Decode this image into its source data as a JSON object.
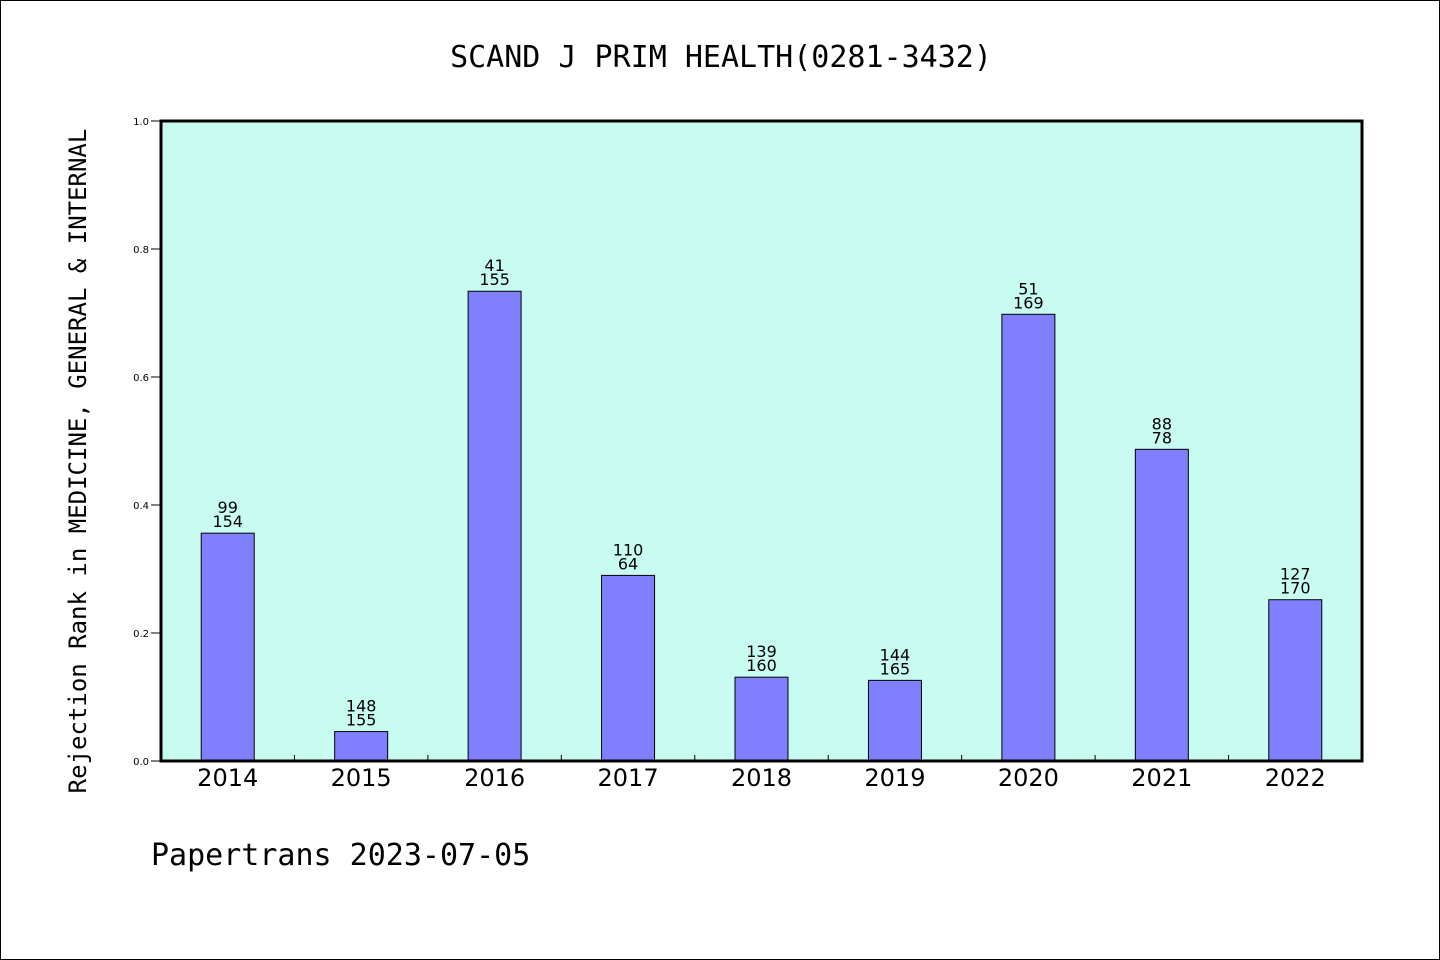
{
  "chart_data": {
    "type": "bar",
    "title": "SCAND J PRIM HEALTH(0281-3432)",
    "ylabel": "Rejection Rank in MEDICINE, GENERAL & INTERNAL",
    "xlabel": "",
    "ylim": [
      0,
      1.0
    ],
    "yticks": [
      "0.0",
      "0.2",
      "0.4",
      "0.6",
      "0.8",
      "1.0"
    ],
    "grid": false,
    "colors": {
      "plot_bg": "#c8fcf0",
      "bar": "#8080ff",
      "bar_edge": "#000000"
    },
    "categories": [
      "2014",
      "2015",
      "2016",
      "2017",
      "2018",
      "2019",
      "2020",
      "2021",
      "2022"
    ],
    "values": [
      0.356,
      0.046,
      0.734,
      0.29,
      0.131,
      0.126,
      0.698,
      0.487,
      0.252
    ],
    "labels_top": [
      "99",
      "148",
      "41",
      "110",
      "139",
      "144",
      "51",
      "88",
      "127"
    ],
    "labels_bottom": [
      "154",
      "155",
      "155",
      "64",
      "160",
      "165",
      "169",
      "78",
      "170"
    ]
  },
  "footer": {
    "text": "Papertrans 2023-07-05"
  }
}
